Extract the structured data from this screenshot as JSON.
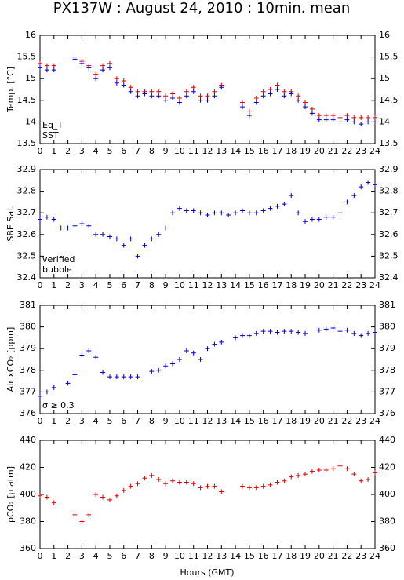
{
  "title": "PX137W : August 24, 2010 : 10min. mean",
  "x_label": "Hours (GMT)",
  "chart_data": [
    {
      "type": "scatter",
      "y_label": "Temp. [°C]",
      "x": [
        0,
        0.5,
        1,
        1.5,
        2,
        2.5,
        3,
        3.5,
        4,
        4.5,
        5,
        5.5,
        6,
        6.5,
        7,
        7.5,
        8,
        8.5,
        9,
        9.5,
        10,
        10.5,
        11,
        11.5,
        12,
        12.5,
        13,
        13.5,
        14,
        14.5,
        15,
        15.5,
        16,
        16.5,
        17,
        17.5,
        18,
        18.5,
        19,
        19.5,
        20,
        20.5,
        21,
        21.5,
        22,
        22.5,
        23,
        23.5,
        24
      ],
      "series": [
        {
          "name": "Eq_T",
          "color": "#dd0000",
          "values": [
            15.35,
            15.3,
            15.3,
            null,
            null,
            15.5,
            15.4,
            15.3,
            15.1,
            15.3,
            15.35,
            15.0,
            14.95,
            14.8,
            14.7,
            14.7,
            14.7,
            14.7,
            14.6,
            14.65,
            14.55,
            14.7,
            14.8,
            14.6,
            14.6,
            14.7,
            14.85,
            null,
            null,
            14.45,
            14.25,
            14.55,
            14.7,
            14.75,
            14.85,
            14.7,
            14.7,
            14.6,
            14.45,
            14.3,
            14.15,
            14.15,
            14.15,
            14.1,
            14.15,
            14.1,
            14.1,
            14.1,
            14.1
          ]
        },
        {
          "name": "SST",
          "color": "#0000cc",
          "values": [
            15.25,
            15.2,
            15.2,
            null,
            null,
            15.45,
            15.35,
            15.25,
            15.0,
            15.2,
            15.25,
            14.9,
            14.85,
            14.7,
            14.6,
            14.65,
            14.6,
            14.6,
            14.5,
            14.55,
            14.45,
            14.6,
            14.7,
            14.5,
            14.5,
            14.6,
            14.8,
            null,
            null,
            14.35,
            14.15,
            14.45,
            14.6,
            14.65,
            14.75,
            14.6,
            14.65,
            14.5,
            14.35,
            14.2,
            14.05,
            14.05,
            14.05,
            14.0,
            14.05,
            14.0,
            13.95,
            14.0,
            14.0
          ]
        }
      ],
      "xlim": [
        0,
        24
      ],
      "xticks": [
        0,
        1,
        2,
        3,
        4,
        5,
        6,
        7,
        8,
        9,
        10,
        11,
        12,
        13,
        14,
        15,
        16,
        17,
        18,
        19,
        20,
        21,
        22,
        23,
        24
      ],
      "ylim": [
        13.5,
        16
      ],
      "yticks": [
        13.5,
        14,
        14.5,
        15,
        15.5,
        16
      ]
    },
    {
      "type": "scatter",
      "y_label": "SBE Sal.",
      "x": [
        0,
        0.5,
        1,
        1.5,
        2,
        2.5,
        3,
        3.5,
        4,
        4.5,
        5,
        5.5,
        6,
        6.5,
        7,
        7.5,
        8,
        8.5,
        9,
        9.5,
        10,
        10.5,
        11,
        11.5,
        12,
        12.5,
        13,
        13.5,
        14,
        14.5,
        15,
        15.5,
        16,
        16.5,
        17,
        17.5,
        18,
        18.5,
        19,
        19.5,
        20,
        20.5,
        21,
        21.5,
        22,
        22.5,
        23,
        23.5,
        24
      ],
      "series": [
        {
          "name": "verified",
          "color": "#0000cc",
          "values": [
            32.67,
            32.68,
            32.67,
            32.63,
            32.63,
            32.64,
            32.65,
            32.64,
            32.6,
            32.6,
            32.59,
            32.58,
            32.55,
            32.58,
            32.5,
            32.55,
            32.58,
            32.6,
            32.63,
            32.7,
            32.72,
            32.71,
            32.71,
            32.7,
            32.69,
            32.7,
            32.7,
            32.69,
            32.7,
            32.71,
            32.7,
            32.7,
            32.71,
            32.72,
            32.73,
            32.74,
            32.78,
            32.7,
            32.66,
            32.67,
            32.67,
            32.68,
            32.68,
            32.7,
            32.75,
            32.78,
            32.82,
            32.84,
            32.83
          ]
        }
      ],
      "annotations": [
        {
          "text": "bubble",
          "color": "#cc00cc"
        }
      ],
      "xlim": [
        0,
        24
      ],
      "xticks": [
        0,
        1,
        2,
        3,
        4,
        5,
        6,
        7,
        8,
        9,
        10,
        11,
        12,
        13,
        14,
        15,
        16,
        17,
        18,
        19,
        20,
        21,
        22,
        23,
        24
      ],
      "ylim": [
        32.4,
        32.9
      ],
      "yticks": [
        32.4,
        32.5,
        32.6,
        32.7,
        32.8,
        32.9
      ]
    },
    {
      "type": "scatter",
      "y_label": "Air xCO₂ [ppm]",
      "x": [
        0,
        0.5,
        1,
        1.5,
        2,
        2.5,
        3,
        3.5,
        4,
        4.5,
        5,
        5.5,
        6,
        6.5,
        7,
        7.5,
        8,
        8.5,
        9,
        9.5,
        10,
        10.5,
        11,
        11.5,
        12,
        12.5,
        13,
        13.5,
        14,
        14.5,
        15,
        15.5,
        16,
        16.5,
        17,
        17.5,
        18,
        18.5,
        19,
        19.5,
        20,
        20.5,
        21,
        21.5,
        22,
        22.5,
        23,
        23.5,
        24
      ],
      "series": [
        {
          "color": "#0000cc",
          "values": [
            376.8,
            377.0,
            377.2,
            null,
            377.4,
            377.8,
            378.7,
            378.9,
            378.6,
            377.9,
            377.7,
            377.7,
            377.7,
            377.7,
            377.7,
            null,
            377.95,
            378.0,
            378.2,
            378.3,
            378.5,
            378.9,
            378.8,
            378.5,
            379.0,
            379.2,
            379.3,
            null,
            379.5,
            379.6,
            379.6,
            379.7,
            379.8,
            379.8,
            379.75,
            379.8,
            379.8,
            379.75,
            379.7,
            null,
            379.85,
            379.9,
            379.95,
            379.8,
            379.85,
            379.7,
            379.6,
            379.7,
            379.75
          ]
        }
      ],
      "annotations": [
        {
          "text": "σ ≥ 0.3",
          "color": "#cc00cc"
        }
      ],
      "xlim": [
        0,
        24
      ],
      "xticks": [
        0,
        1,
        2,
        3,
        4,
        5,
        6,
        7,
        8,
        9,
        10,
        11,
        12,
        13,
        14,
        15,
        16,
        17,
        18,
        19,
        20,
        21,
        22,
        23,
        24
      ],
      "ylim": [
        376,
        381
      ],
      "yticks": [
        376,
        377,
        378,
        379,
        380,
        381
      ]
    },
    {
      "type": "scatter",
      "y_label": "ρCO₂ [μ atm]",
      "x": [
        0,
        0.5,
        1,
        1.5,
        2,
        2.5,
        3,
        3.5,
        4,
        4.5,
        5,
        5.5,
        6,
        6.5,
        7,
        7.5,
        8,
        8.5,
        9,
        9.5,
        10,
        10.5,
        11,
        11.5,
        12,
        12.5,
        13,
        13.5,
        14,
        14.5,
        15,
        15.5,
        16,
        16.5,
        17,
        17.5,
        18,
        18.5,
        19,
        19.5,
        20,
        20.5,
        21,
        21.5,
        22,
        22.5,
        23,
        23.5,
        24
      ],
      "series": [
        {
          "color": "#dd0000",
          "values": [
            399,
            398,
            394,
            null,
            null,
            385,
            380,
            385,
            400,
            398,
            396,
            399,
            403,
            406,
            408,
            412,
            414,
            411,
            408,
            410,
            409,
            409,
            408,
            405,
            406,
            406,
            402,
            null,
            null,
            406,
            405,
            405,
            406,
            407,
            409,
            410,
            413,
            414,
            415,
            417,
            418,
            418,
            419,
            421,
            419,
            415,
            410,
            411,
            416
          ]
        }
      ],
      "xlim": [
        0,
        24
      ],
      "xticks": [
        0,
        1,
        2,
        3,
        4,
        5,
        6,
        7,
        8,
        9,
        10,
        11,
        12,
        13,
        14,
        15,
        16,
        17,
        18,
        19,
        20,
        21,
        22,
        23,
        24
      ],
      "ylim": [
        360,
        440
      ],
      "yticks": [
        360,
        380,
        400,
        420,
        440
      ]
    }
  ]
}
